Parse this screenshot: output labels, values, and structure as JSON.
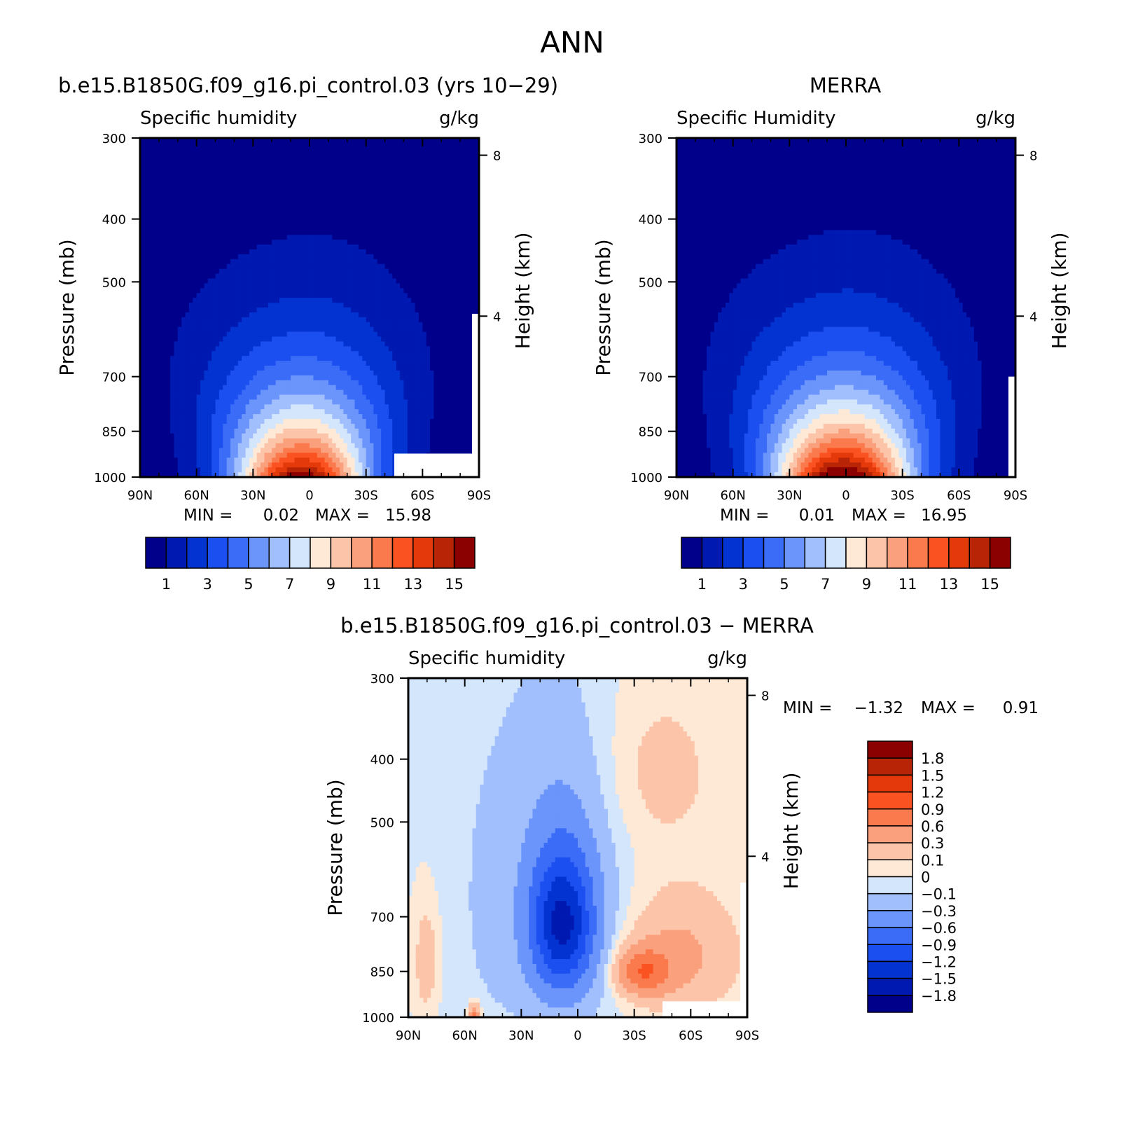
{
  "figure_title": "ANN",
  "chart_data": [
    {
      "type": "heatmap",
      "id": "model",
      "title": "b.e15.B1850G.f09_g16.pi_control.03 (yrs 10−29)",
      "variable": "Specific humidity",
      "units": "g/kg",
      "xlabel": "",
      "ylabel": "Pressure (mb)",
      "y2label": "Height (km)",
      "x_ticks": [
        "90N",
        "60N",
        "30N",
        "0",
        "30S",
        "60S",
        "90S"
      ],
      "x_range": [
        90,
        -90
      ],
      "y_ticks": [
        "300",
        "400",
        "500",
        "700",
        "850",
        "1000"
      ],
      "y_range": [
        300,
        1000
      ],
      "y2_ticks": [
        "8",
        "4"
      ],
      "min_label": "MIN =",
      "min_value": "0.02",
      "max_label": "MAX =",
      "max_value": "15.98",
      "levels": [
        1,
        2,
        3,
        4,
        5,
        6,
        7,
        8,
        9,
        10,
        11,
        12,
        13,
        14,
        15
      ],
      "colorbar_labels": [
        "1",
        "3",
        "5",
        "7",
        "9",
        "11",
        "13",
        "15"
      ],
      "field": {
        "surface_peak": 15.5,
        "peak_lat": 5,
        "surface_width_deg": 26,
        "topmask_lat": -45
      }
    },
    {
      "type": "heatmap",
      "id": "obs",
      "title": "MERRA",
      "variable": "Specific Humidity",
      "units": "g/kg",
      "xlabel": "",
      "ylabel": "Pressure (mb)",
      "y2label": "Height (km)",
      "x_ticks": [
        "90N",
        "60N",
        "30N",
        "0",
        "30S",
        "60S",
        "90S"
      ],
      "x_range": [
        90,
        -90
      ],
      "y_ticks": [
        "300",
        "400",
        "500",
        "700",
        "850",
        "1000"
      ],
      "y_range": [
        300,
        1000
      ],
      "y2_ticks": [
        "8",
        "4"
      ],
      "min_label": "MIN =",
      "min_value": "0.01",
      "max_label": "MAX =",
      "max_value": "16.95",
      "levels": [
        1,
        2,
        3,
        4,
        5,
        6,
        7,
        8,
        9,
        10,
        11,
        12,
        13,
        14,
        15
      ],
      "colorbar_labels": [
        "1",
        "3",
        "5",
        "7",
        "9",
        "11",
        "13",
        "15"
      ],
      "field": {
        "surface_peak": 16.6,
        "peak_lat": 2,
        "surface_width_deg": 28,
        "topmask_lat": -85
      }
    },
    {
      "type": "heatmap",
      "id": "diff",
      "title": "b.e15.B1850G.f09_g16.pi_control.03 − MERRA",
      "variable": "Specific humidity",
      "units": "g/kg",
      "xlabel": "",
      "ylabel": "Pressure (mb)",
      "y2label": "Height (km)",
      "x_ticks": [
        "90N",
        "60N",
        "30N",
        "0",
        "30S",
        "60S",
        "90S"
      ],
      "x_range": [
        90,
        -90
      ],
      "y_ticks": [
        "300",
        "400",
        "500",
        "700",
        "850",
        "1000"
      ],
      "y_range": [
        300,
        1000
      ],
      "y2_ticks": [
        "8",
        "4"
      ],
      "min_label": "MIN =",
      "min_value": "−1.32",
      "max_label": "MAX =",
      "max_value": "0.91",
      "levels": [
        -1.8,
        -1.5,
        -1.2,
        -0.9,
        -0.6,
        -0.3,
        -0.1,
        0,
        0.1,
        0.3,
        0.6,
        0.9,
        1.2,
        1.5,
        1.8
      ],
      "colorbar_labels": [
        "1.8",
        "1.5",
        "1.2",
        "0.9",
        "0.6",
        "0.3",
        "0.1",
        "0",
        "−0.1",
        "−0.3",
        "−0.6",
        "−0.9",
        "−1.2",
        "−1.5",
        "−1.8"
      ],
      "field": {
        "min": -1.32,
        "max": 0.91,
        "minimum_lat": 8,
        "minimum_pressure": 720,
        "positive_lat": -35,
        "positive_pressure": 850
      }
    }
  ],
  "colors": {
    "sequential": [
      "#00008b",
      "#0019b0",
      "#0333d0",
      "#1c4ff0",
      "#3a6cf8",
      "#6b95fb",
      "#a2bffd",
      "#d4e6fc",
      "#fde9d6",
      "#fcc5aa",
      "#fba07c",
      "#fa7a4d",
      "#fb5222",
      "#e43a0b",
      "#b82506",
      "#8b0000"
    ],
    "diverging": [
      "#00008b",
      "#0019b0",
      "#0333d0",
      "#1c4ff0",
      "#3a6cf8",
      "#6b95fb",
      "#a2bffd",
      "#d4e6fc",
      "#fde9d6",
      "#fcc5aa",
      "#fba07c",
      "#fa7a4d",
      "#fb5222",
      "#e43a0b",
      "#b82506",
      "#8b0000"
    ]
  }
}
